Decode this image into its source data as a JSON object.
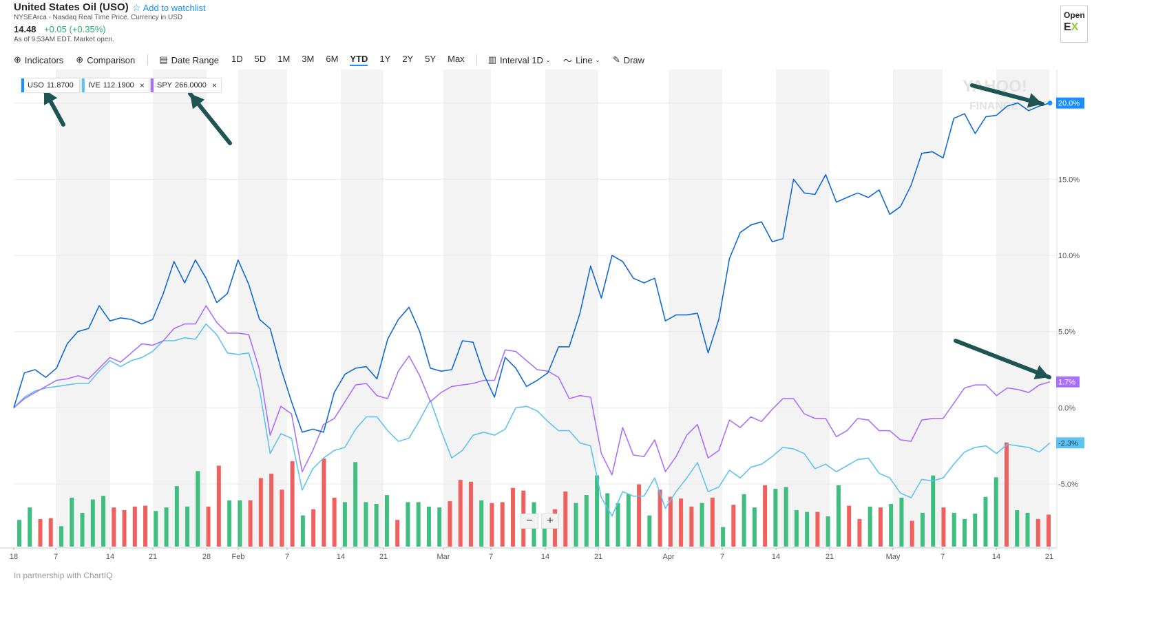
{
  "header": {
    "title": "United States Oil (USO)",
    "watchlist": "Add to watchlist",
    "exchange": "NYSEArca - Nasdaq Real Time Price. Currency in USD",
    "price": "14.48",
    "change": "+0.05 (+0.35%)",
    "as_of": "As of 9:53AM EDT. Market open."
  },
  "promo": {
    "open": "Open",
    "logo": "E",
    "logo_accent": "X"
  },
  "toolbar": {
    "indicators": "Indicators",
    "comparison": "Comparison",
    "date_range": "Date Range",
    "ranges": [
      "1D",
      "5D",
      "1M",
      "3M",
      "6M",
      "YTD",
      "1Y",
      "2Y",
      "5Y",
      "Max"
    ],
    "active_range": "YTD",
    "interval": "Interval",
    "interval_value": "1D",
    "line": "Line",
    "draw": "Draw"
  },
  "legend": [
    {
      "symbol": "USO",
      "value": "11.8700",
      "color": "#188fff"
    },
    {
      "symbol": "IVE",
      "value": "112.1900",
      "color": "#5fc3f0",
      "removable": true
    },
    {
      "symbol": "SPY",
      "value": "266.0000",
      "color": "#a970ff",
      "removable": true
    }
  ],
  "footer": "In partnership with ChartIQ",
  "zoom": {
    "minus": "−",
    "plus": "+"
  },
  "chart_data": {
    "type": "line",
    "y_tick_labels": [
      "20.0%",
      "15.0%",
      "10.0%",
      "5.0%",
      "0.0%",
      "-5.0%"
    ],
    "y_ticks": [
      20,
      15,
      10,
      5,
      0,
      -5
    ],
    "ylim": [
      -9.2,
      22.2
    ],
    "x_tick_labels": [
      "18",
      "7",
      "14",
      "21",
      "28",
      "Feb",
      "7",
      "14",
      "21",
      "Mar",
      "7",
      "14",
      "21",
      "Apr",
      "7",
      "14",
      "21",
      "May",
      "7",
      "14",
      "21"
    ],
    "series": [
      {
        "name": "USO",
        "color": "#0f69d6",
        "last_label": "20.0%",
        "values": [
          0.0,
          2.3,
          2.5,
          2.0,
          2.6,
          4.2,
          5.0,
          5.2,
          6.7,
          5.7,
          5.9,
          5.8,
          5.5,
          5.8,
          7.5,
          9.6,
          8.2,
          9.7,
          8.5,
          6.9,
          7.5,
          9.7,
          8.1,
          5.8,
          5.2,
          2.6,
          0.4,
          -1.6,
          -1.4,
          -1.6,
          1.0,
          2.2,
          2.6,
          2.7,
          1.9,
          4.5,
          5.8,
          6.6,
          5.0,
          2.6,
          2.4,
          2.5,
          4.4,
          4.3,
          2.2,
          0.7,
          3.3,
          2.6,
          1.4,
          1.8,
          2.3,
          4.0,
          4.0,
          6.2,
          9.3,
          7.2,
          10.0,
          9.6,
          8.5,
          8.2,
          8.5,
          5.7,
          6.1,
          6.1,
          6.2,
          3.6,
          5.8,
          9.8,
          11.5,
          12.0,
          12.2,
          10.9,
          11.1,
          15.0,
          14.1,
          14.0,
          15.3,
          13.5,
          13.8,
          14.1,
          13.8,
          14.3,
          12.7,
          13.2,
          14.6,
          16.7,
          16.8,
          16.4,
          19.0,
          19.3,
          18.0,
          19.1,
          19.2,
          19.8,
          20.0,
          19.5,
          19.8,
          20.0
        ]
      },
      {
        "name": "IVE",
        "color": "#5fc3f0",
        "last_label": "-2.3%",
        "values": [
          0.0,
          0.7,
          1.1,
          1.3,
          1.4,
          1.5,
          1.6,
          1.6,
          2.4,
          3.1,
          2.7,
          3.1,
          3.3,
          3.7,
          4.4,
          4.4,
          4.6,
          4.5,
          5.5,
          4.8,
          3.6,
          3.5,
          3.6,
          1.2,
          -3.0,
          -1.7,
          -2.0,
          -5.4,
          -4.0,
          -3.3,
          -2.8,
          -2.6,
          -1.4,
          -0.6,
          -0.6,
          -1.5,
          -2.2,
          -2.0,
          -0.8,
          0.5,
          -1.5,
          -3.3,
          -2.8,
          -1.8,
          -1.6,
          -1.8,
          -1.4,
          0.0,
          0.1,
          -0.2,
          -0.9,
          -1.5,
          -1.5,
          -2.3,
          -2.5,
          -5.9,
          -7.1,
          -5.5,
          -5.8,
          -5.8,
          -4.6,
          -6.6,
          -5.5,
          -4.6,
          -3.6,
          -5.5,
          -5.2,
          -4.1,
          -4.6,
          -3.9,
          -3.7,
          -3.2,
          -2.6,
          -2.7,
          -3.0,
          -4.0,
          -3.7,
          -4.2,
          -3.8,
          -3.4,
          -3.3,
          -4.3,
          -4.6,
          -5.6,
          -5.9,
          -4.7,
          -4.8,
          -4.6,
          -3.7,
          -2.9,
          -2.6,
          -2.5,
          -3.0,
          -2.4,
          -2.5,
          -2.6,
          -2.9,
          -2.3
        ]
      },
      {
        "name": "SPY",
        "color": "#a970ff",
        "last_label": "1.7%",
        "values": [
          0.0,
          0.6,
          1.0,
          1.4,
          1.8,
          1.9,
          2.1,
          1.9,
          2.6,
          3.3,
          3.0,
          3.6,
          4.2,
          4.1,
          4.4,
          5.2,
          5.5,
          5.5,
          6.7,
          5.6,
          4.9,
          4.9,
          4.8,
          2.5,
          -1.8,
          0.1,
          -0.4,
          -4.2,
          -2.8,
          -1.1,
          -0.7,
          0.4,
          1.5,
          1.6,
          0.8,
          0.6,
          2.4,
          3.4,
          2.1,
          0.4,
          1.0,
          1.4,
          1.5,
          1.6,
          1.8,
          1.8,
          3.8,
          3.7,
          3.1,
          2.5,
          2.4,
          2.0,
          0.6,
          0.8,
          0.7,
          -3.0,
          -4.4,
          -1.3,
          -3.1,
          -3.2,
          -2.1,
          -4.2,
          -3.2,
          -1.8,
          -1.1,
          -3.3,
          -2.8,
          -0.8,
          -1.3,
          -0.6,
          -0.9,
          -0.1,
          0.6,
          0.6,
          -0.4,
          -0.7,
          -0.7,
          -1.9,
          -1.5,
          -0.7,
          -0.8,
          -1.5,
          -1.5,
          -2.1,
          -2.2,
          -0.8,
          -0.7,
          -0.7,
          0.3,
          1.3,
          1.5,
          1.5,
          0.8,
          1.3,
          1.2,
          1.0,
          1.5,
          1.7
        ]
      }
    ],
    "volume": [
      [
        0.3,
        "g"
      ],
      [
        0.44,
        "g"
      ],
      [
        0.31,
        "r"
      ],
      [
        0.32,
        "r"
      ],
      [
        0.23,
        "g"
      ],
      [
        0.55,
        "g"
      ],
      [
        0.38,
        "g"
      ],
      [
        0.53,
        "g"
      ],
      [
        0.57,
        "g"
      ],
      [
        0.44,
        "r"
      ],
      [
        0.41,
        "r"
      ],
      [
        0.45,
        "r"
      ],
      [
        0.46,
        "r"
      ],
      [
        0.4,
        "g"
      ],
      [
        0.44,
        "g"
      ],
      [
        0.68,
        "g"
      ],
      [
        0.45,
        "g"
      ],
      [
        0.85,
        "g"
      ],
      [
        0.45,
        "r"
      ],
      [
        0.91,
        "r"
      ],
      [
        0.52,
        "g"
      ],
      [
        0.52,
        "g"
      ],
      [
        0.52,
        "r"
      ],
      [
        0.77,
        "r"
      ],
      [
        0.82,
        "r"
      ],
      [
        0.64,
        "r"
      ],
      [
        0.96,
        "r"
      ],
      [
        0.35,
        "g"
      ],
      [
        0.42,
        "r"
      ],
      [
        0.99,
        "r"
      ],
      [
        0.55,
        "r"
      ],
      [
        0.5,
        "g"
      ],
      [
        0.95,
        "g"
      ],
      [
        0.5,
        "g"
      ],
      [
        0.48,
        "g"
      ],
      [
        0.58,
        "g"
      ],
      [
        0.3,
        "r"
      ],
      [
        0.5,
        "g"
      ],
      [
        0.5,
        "g"
      ],
      [
        0.45,
        "g"
      ],
      [
        0.44,
        "g"
      ],
      [
        0.51,
        "r"
      ],
      [
        0.75,
        "r"
      ],
      [
        0.73,
        "r"
      ],
      [
        0.52,
        "g"
      ],
      [
        0.49,
        "r"
      ],
      [
        0.5,
        "r"
      ],
      [
        0.66,
        "r"
      ],
      [
        0.63,
        "r"
      ],
      [
        0.5,
        "g"
      ],
      [
        0.36,
        "g"
      ],
      [
        0.42,
        "r"
      ],
      [
        0.62,
        "r"
      ],
      [
        0.49,
        "g"
      ],
      [
        0.58,
        "g"
      ],
      [
        0.8,
        "g"
      ],
      [
        0.6,
        "g"
      ],
      [
        0.49,
        "g"
      ],
      [
        0.59,
        "g"
      ],
      [
        0.7,
        "r"
      ],
      [
        0.35,
        "g"
      ],
      [
        0.64,
        "r"
      ],
      [
        0.56,
        "r"
      ],
      [
        0.54,
        "r"
      ],
      [
        0.45,
        "r"
      ],
      [
        0.49,
        "g"
      ],
      [
        0.55,
        "r"
      ],
      [
        0.22,
        "g"
      ],
      [
        0.47,
        "r"
      ],
      [
        0.59,
        "g"
      ],
      [
        0.44,
        "g"
      ],
      [
        0.69,
        "r"
      ],
      [
        0.65,
        "g"
      ],
      [
        0.67,
        "g"
      ],
      [
        0.41,
        "g"
      ],
      [
        0.39,
        "g"
      ],
      [
        0.39,
        "r"
      ],
      [
        0.34,
        "g"
      ],
      [
        0.69,
        "g"
      ],
      [
        0.46,
        "r"
      ],
      [
        0.31,
        "r"
      ],
      [
        0.45,
        "g"
      ],
      [
        0.44,
        "r"
      ],
      [
        0.48,
        "g"
      ],
      [
        0.55,
        "g"
      ],
      [
        0.29,
        "r"
      ],
      [
        0.38,
        "g"
      ],
      [
        0.8,
        "g"
      ],
      [
        0.44,
        "r"
      ],
      [
        0.38,
        "g"
      ],
      [
        0.31,
        "g"
      ],
      [
        0.37,
        "g"
      ],
      [
        0.56,
        "g"
      ],
      [
        0.78,
        "g"
      ],
      [
        1.17,
        "r"
      ],
      [
        0.41,
        "g"
      ],
      [
        0.38,
        "g"
      ],
      [
        0.31,
        "r"
      ],
      [
        0.36,
        "r"
      ]
    ]
  }
}
